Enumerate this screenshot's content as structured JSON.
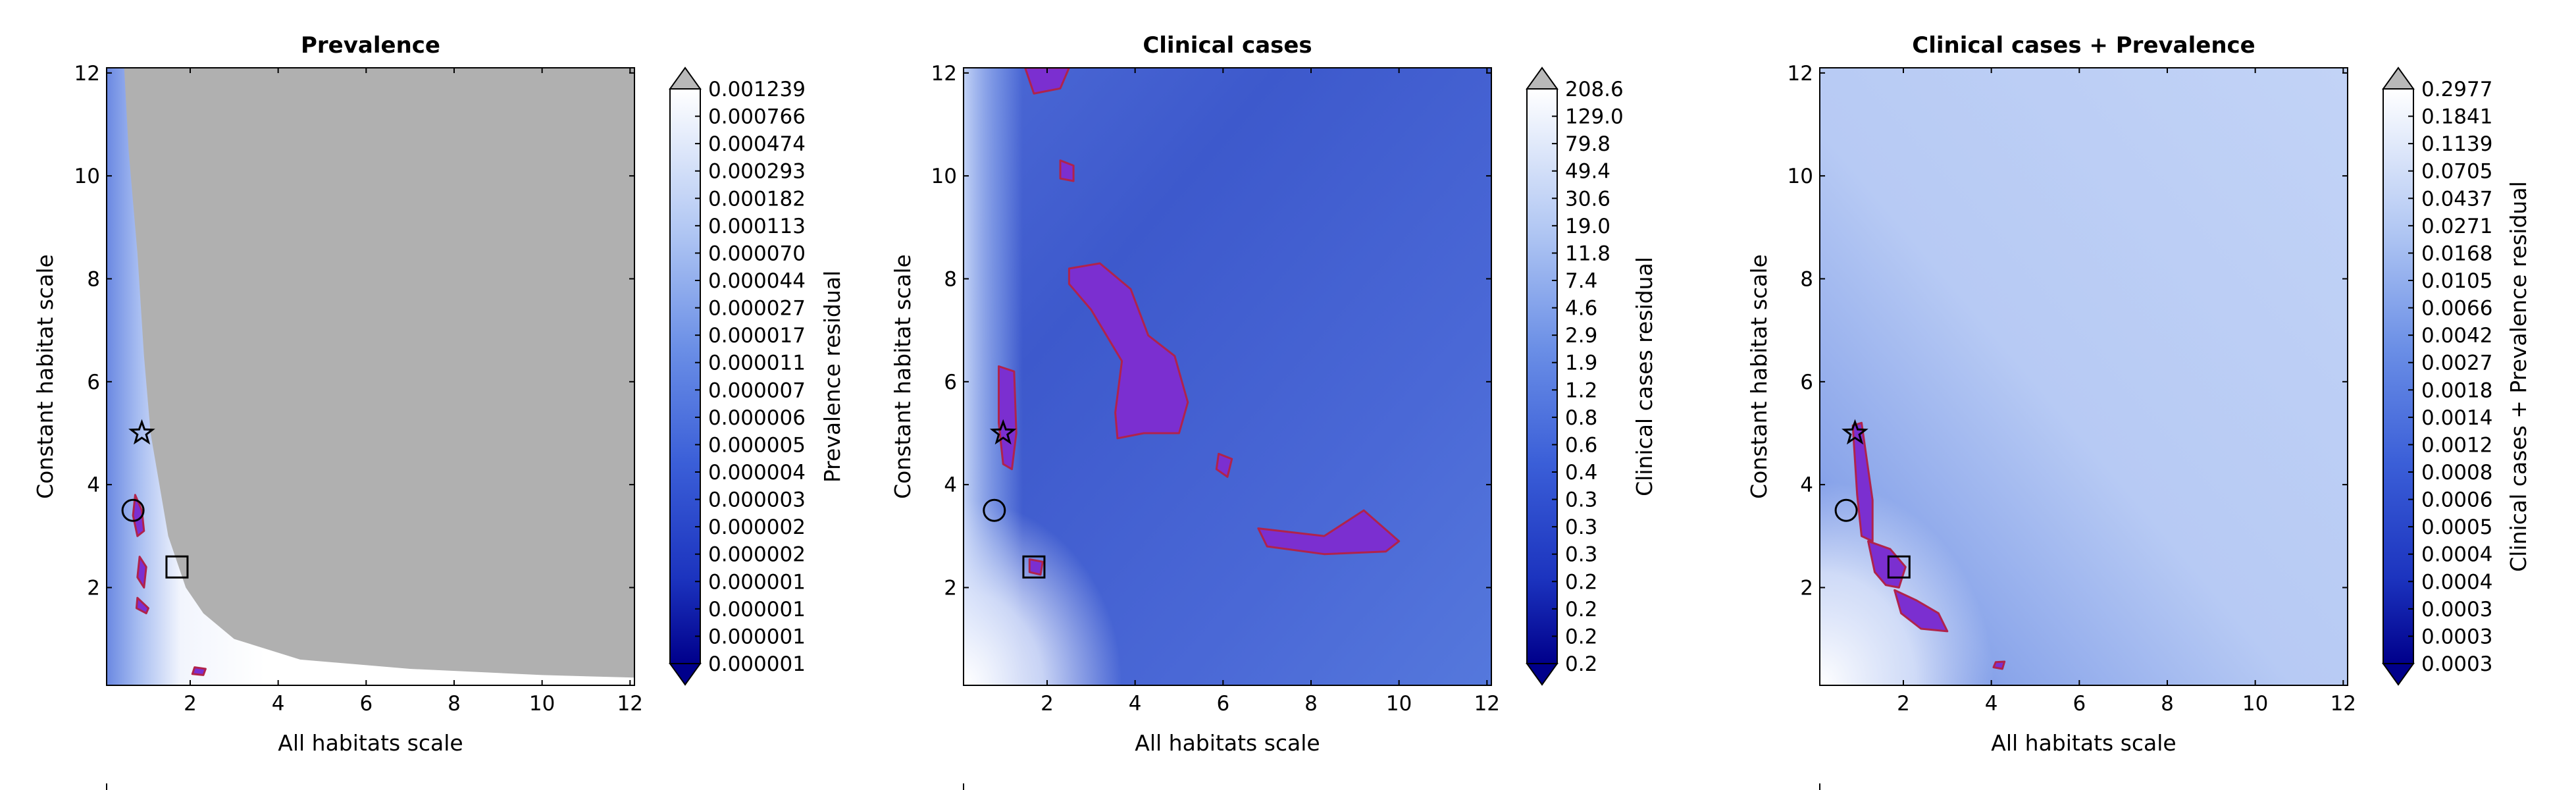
{
  "colors": {
    "grey_mask": "#b0b0b0",
    "contour_fill": "#7b2fd0",
    "contour_edge": "#b0234b",
    "cb_over": "#b9b9b9",
    "cb_under": "#00008b"
  },
  "chart_data": [
    {
      "type": "heatmap",
      "title": "Prevalence",
      "xlabel": "All habitats scale",
      "ylabel": "Constant habitat scale",
      "xlim": [
        0.1,
        12.1
      ],
      "ylim": [
        0.1,
        12.1
      ],
      "xticks": [
        2,
        4,
        6,
        8,
        10,
        12
      ],
      "yticks": [
        2,
        4,
        6,
        8,
        10,
        12
      ],
      "colorbar_label": "Prevalence residual",
      "colorbar_ticks": [
        "0.001239",
        "0.000766",
        "0.000474",
        "0.000293",
        "0.000182",
        "0.000113",
        "0.000070",
        "0.000044",
        "0.000027",
        "0.000017",
        "0.000011",
        "0.000007",
        "0.000006",
        "0.000005",
        "0.000004",
        "0.000003",
        "0.000002",
        "0.000002",
        "0.000001",
        "0.000001",
        "0.000001",
        "0.000001"
      ],
      "markers": [
        {
          "shape": "star",
          "x": 0.9,
          "y": 5.0
        },
        {
          "shape": "circle",
          "x": 0.7,
          "y": 3.5
        },
        {
          "shape": "square",
          "x": 1.7,
          "y": 2.4
        }
      ],
      "grey_region_boundary": [
        [
          0.5,
          12.1
        ],
        [
          0.6,
          10.5
        ],
        [
          0.8,
          8.5
        ],
        [
          0.95,
          6.5
        ],
        [
          1.1,
          5.0
        ],
        [
          1.3,
          4.0
        ],
        [
          1.5,
          3.0
        ],
        [
          1.9,
          2.0
        ],
        [
          2.3,
          1.5
        ],
        [
          3.0,
          1.0
        ],
        [
          4.5,
          0.6
        ],
        [
          7.0,
          0.42
        ],
        [
          10.0,
          0.3
        ],
        [
          12.1,
          0.25
        ]
      ],
      "highlight_regions": [
        [
          [
            0.75,
            3.8
          ],
          [
            0.9,
            3.5
          ],
          [
            0.95,
            3.1
          ],
          [
            0.8,
            3.0
          ],
          [
            0.7,
            3.4
          ]
        ],
        [
          [
            0.85,
            2.6
          ],
          [
            1.0,
            2.4
          ],
          [
            0.95,
            2.0
          ],
          [
            0.8,
            2.2
          ]
        ],
        [
          [
            0.8,
            1.8
          ],
          [
            1.05,
            1.6
          ],
          [
            1.0,
            1.5
          ],
          [
            0.78,
            1.6
          ]
        ],
        [
          [
            2.1,
            0.45
          ],
          [
            2.35,
            0.42
          ],
          [
            2.3,
            0.3
          ],
          [
            2.05,
            0.32
          ]
        ]
      ]
    },
    {
      "type": "heatmap",
      "title": "Clinical cases",
      "xlabel": "All habitats scale",
      "ylabel": "Constant habitat scale",
      "xlim": [
        0.1,
        12.1
      ],
      "ylim": [
        0.1,
        12.1
      ],
      "xticks": [
        2,
        4,
        6,
        8,
        10,
        12
      ],
      "yticks": [
        2,
        4,
        6,
        8,
        10,
        12
      ],
      "colorbar_label": "Clinical cases residual",
      "colorbar_ticks": [
        "208.6",
        "129.0",
        "79.8",
        "49.4",
        "30.6",
        "19.0",
        "11.8",
        "7.4",
        "4.6",
        "2.9",
        "1.9",
        "1.2",
        "0.8",
        "0.6",
        "0.4",
        "0.3",
        "0.3",
        "0.3",
        "0.2",
        "0.2",
        "0.2",
        "0.2"
      ],
      "markers": [
        {
          "shape": "star",
          "x": 1.0,
          "y": 5.0
        },
        {
          "shape": "circle",
          "x": 0.8,
          "y": 3.5
        },
        {
          "shape": "square",
          "x": 1.7,
          "y": 2.4
        }
      ],
      "highlight_regions": [
        [
          [
            1.5,
            12.1
          ],
          [
            2.5,
            12.1
          ],
          [
            2.3,
            11.7
          ],
          [
            1.7,
            11.6
          ]
        ],
        [
          [
            2.3,
            10.3
          ],
          [
            2.6,
            10.2
          ],
          [
            2.6,
            9.9
          ],
          [
            2.3,
            9.95
          ]
        ],
        [
          [
            2.5,
            8.2
          ],
          [
            3.2,
            8.3
          ],
          [
            3.9,
            7.8
          ],
          [
            4.3,
            6.9
          ],
          [
            4.9,
            6.5
          ],
          [
            5.2,
            5.6
          ],
          [
            5.0,
            5.0
          ],
          [
            4.2,
            5.0
          ],
          [
            3.6,
            4.9
          ],
          [
            3.55,
            5.4
          ],
          [
            3.7,
            6.4
          ],
          [
            3.0,
            7.4
          ],
          [
            2.5,
            7.9
          ]
        ],
        [
          [
            0.9,
            6.3
          ],
          [
            1.25,
            6.2
          ],
          [
            1.3,
            5.0
          ],
          [
            1.2,
            4.3
          ],
          [
            1.0,
            4.4
          ],
          [
            0.9,
            5.2
          ]
        ],
        [
          [
            5.9,
            4.6
          ],
          [
            6.2,
            4.5
          ],
          [
            6.1,
            4.15
          ],
          [
            5.85,
            4.3
          ]
        ],
        [
          [
            6.8,
            3.15
          ],
          [
            8.3,
            3.0
          ],
          [
            9.2,
            3.5
          ],
          [
            10.0,
            2.9
          ],
          [
            9.7,
            2.7
          ],
          [
            8.3,
            2.65
          ],
          [
            7.0,
            2.8
          ]
        ],
        [
          [
            1.6,
            2.55
          ],
          [
            1.9,
            2.5
          ],
          [
            1.85,
            2.25
          ],
          [
            1.6,
            2.3
          ]
        ]
      ]
    },
    {
      "type": "heatmap",
      "title": "Clinical cases + Prevalence",
      "xlabel": "All habitats scale",
      "ylabel": "Constant habitat scale",
      "xlim": [
        0.1,
        12.1
      ],
      "ylim": [
        0.1,
        12.1
      ],
      "xticks": [
        2,
        4,
        6,
        8,
        10,
        12
      ],
      "yticks": [
        2,
        4,
        6,
        8,
        10,
        12
      ],
      "colorbar_label": "Clinical cases + Prevalence residual",
      "colorbar_ticks": [
        "0.2977",
        "0.1841",
        "0.1139",
        "0.0705",
        "0.0437",
        "0.0271",
        "0.0168",
        "0.0105",
        "0.0066",
        "0.0042",
        "0.0027",
        "0.0018",
        "0.0014",
        "0.0012",
        "0.0008",
        "0.0006",
        "0.0005",
        "0.0004",
        "0.0004",
        "0.0003",
        "0.0003",
        "0.0003"
      ],
      "markers": [
        {
          "shape": "star",
          "x": 0.9,
          "y": 5.0
        },
        {
          "shape": "circle",
          "x": 0.7,
          "y": 3.5
        },
        {
          "shape": "square",
          "x": 1.9,
          "y": 2.4
        }
      ],
      "highlight_regions": [
        [
          [
            0.85,
            5.15
          ],
          [
            1.05,
            5.2
          ],
          [
            1.3,
            3.7
          ],
          [
            1.3,
            2.9
          ],
          [
            1.05,
            3.0
          ],
          [
            0.95,
            3.8
          ]
        ],
        [
          [
            1.2,
            2.9
          ],
          [
            1.7,
            2.75
          ],
          [
            2.05,
            2.4
          ],
          [
            1.9,
            2.0
          ],
          [
            1.6,
            2.05
          ],
          [
            1.35,
            2.3
          ]
        ],
        [
          [
            1.8,
            1.95
          ],
          [
            2.3,
            1.75
          ],
          [
            2.8,
            1.5
          ],
          [
            3.0,
            1.15
          ],
          [
            2.4,
            1.2
          ],
          [
            1.95,
            1.5
          ]
        ],
        [
          [
            4.1,
            0.55
          ],
          [
            4.3,
            0.56
          ],
          [
            4.25,
            0.42
          ],
          [
            4.05,
            0.45
          ]
        ]
      ]
    }
  ]
}
